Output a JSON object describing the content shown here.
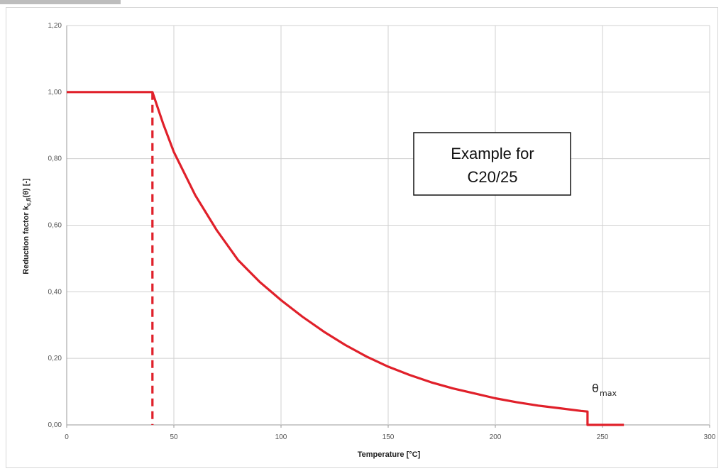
{
  "chart_data": {
    "type": "line",
    "xlabel": "Temperature [°C]",
    "ylabel": "Reduction factor k",
    "ylabel_sub": "c,fi",
    "ylabel_tail": "(θ) [-]",
    "xlim": [
      0,
      300
    ],
    "ylim": [
      0,
      1.2
    ],
    "x_ticks": [
      0,
      50,
      100,
      150,
      200,
      250,
      300
    ],
    "x_tick_labels": [
      "0",
      "50",
      "100",
      "150",
      "200",
      "250",
      "300"
    ],
    "y_ticks": [
      0,
      0.2,
      0.4,
      0.6,
      0.8,
      1.0,
      1.2
    ],
    "y_tick_labels": [
      "0,00",
      "0,20",
      "0,40",
      "0,60",
      "0,80",
      "1,00",
      "1,20"
    ],
    "grid": true,
    "color": "#e0202a",
    "series": [
      {
        "style": "solid",
        "x": [
          0,
          40,
          45,
          50,
          60,
          70,
          80,
          90,
          100,
          110,
          120,
          130,
          140,
          150,
          160,
          170,
          180,
          190,
          200,
          210,
          220,
          230,
          240,
          243,
          243,
          260
        ],
        "y": [
          1.0,
          1.0,
          0.905,
          0.82,
          0.69,
          0.585,
          0.495,
          0.43,
          0.375,
          0.325,
          0.28,
          0.24,
          0.205,
          0.175,
          0.15,
          0.128,
          0.11,
          0.095,
          0.08,
          0.068,
          0.058,
          0.05,
          0.042,
          0.04,
          0.0,
          0.0
        ]
      },
      {
        "style": "dashed",
        "x": [
          40,
          40
        ],
        "y": [
          1.0,
          0.0
        ]
      }
    ],
    "annotations": [
      {
        "text_lines": [
          "Example for",
          "C20/25"
        ],
        "style": "boxed"
      },
      {
        "text": "θ",
        "subscript": "max",
        "x": 243,
        "y": 0.04
      }
    ]
  }
}
